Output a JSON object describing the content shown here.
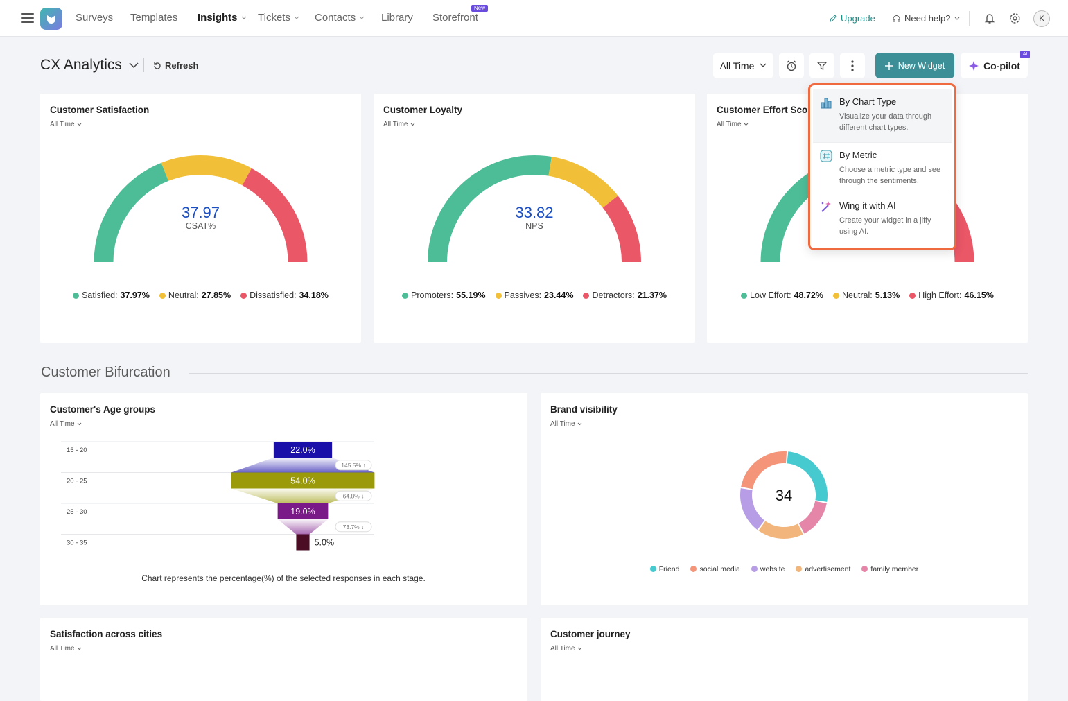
{
  "nav": {
    "items": [
      "Surveys",
      "Templates",
      "Insights",
      "Tickets",
      "Contacts",
      "Library",
      "Storefront"
    ],
    "badge": "New",
    "upgrade": "Upgrade",
    "help": "Need help?",
    "avatar": "K"
  },
  "toolbar": {
    "title": "CX Analytics",
    "refresh": "Refresh",
    "time_range": "All Time",
    "new_widget": "New Widget",
    "copilot": "Co-pilot",
    "copilot_badge": "AI"
  },
  "widget_menu": [
    {
      "title": "By Chart Type",
      "description": "Visualize your data through different chart types."
    },
    {
      "title": "By Metric",
      "description": "Choose a metric type and see through the sentiments."
    },
    {
      "title": "Wing it with AI",
      "description": "Create your widget in a jiffy using AI."
    }
  ],
  "section_title": "Customer Bifurcation",
  "chart_data": [
    {
      "type": "gauge",
      "title": "Customer Satisfaction",
      "filter": "All Time",
      "value": 37.97,
      "unit": "CSAT%",
      "categories": [
        "Satisfied:",
        "Neutral:",
        "Dissatisfied:"
      ],
      "values": [
        37.97,
        27.85,
        34.18
      ],
      "value_labels": [
        "37.97%",
        "27.85%",
        "34.18%"
      ],
      "colors": [
        "#4dbd98",
        "#f2c038",
        "#ea5767"
      ]
    },
    {
      "type": "gauge",
      "title": "Customer Loyalty",
      "filter": "All Time",
      "value": 33.82,
      "unit": "NPS",
      "categories": [
        "Promoters:",
        "Passives:",
        "Detractors:"
      ],
      "values": [
        55.19,
        23.44,
        21.37
      ],
      "value_labels": [
        "55.19%",
        "23.44%",
        "21.37%"
      ],
      "colors": [
        "#4dbd98",
        "#f2c038",
        "#ea5767"
      ]
    },
    {
      "type": "gauge",
      "title": "Customer Effort Score",
      "filter": "All Time",
      "categories": [
        "Low Effort:",
        "Neutral:",
        "High Effort:"
      ],
      "values": [
        48.72,
        5.13,
        46.15
      ],
      "value_labels": [
        "48.72%",
        "5.13%",
        "46.15%"
      ],
      "colors": [
        "#4dbd98",
        "#f2c038",
        "#ea5767"
      ]
    },
    {
      "type": "funnel",
      "title": "Customer's Age groups",
      "filter": "All Time",
      "categories": [
        "15 - 20",
        "20 - 25",
        "25 - 30",
        "30 - 35"
      ],
      "values": [
        22.0,
        54.0,
        19.0,
        5.0
      ],
      "value_labels": [
        "22.0%",
        "54.0%",
        "19.0%",
        "5.0%"
      ],
      "colors": [
        "#1a0fa8",
        "#9a9a0a",
        "#7a1a88",
        "#4a0d24"
      ],
      "changes": [
        145.5,
        64.8,
        73.7
      ],
      "change_labels": [
        "145.5% ↑",
        "64.8% ↓",
        "73.7% ↓"
      ],
      "caption": "Chart represents the percentage(%) of the selected responses in each stage."
    },
    {
      "type": "donut",
      "title": "Brand visibility",
      "filter": "All Time",
      "total": 34,
      "categories": [
        "Friend",
        "social media",
        "website",
        "advertisement",
        "family member"
      ],
      "values": [
        9,
        8,
        6,
        6,
        5
      ],
      "colors": [
        "#47c9d0",
        "#f4957a",
        "#b79ce6",
        "#f2b67c",
        "#e585a8"
      ]
    }
  ],
  "placeholder_cards": [
    {
      "title": "Satisfaction across cities",
      "filter": "All Time"
    },
    {
      "title": "Customer journey",
      "filter": "All Time"
    }
  ]
}
